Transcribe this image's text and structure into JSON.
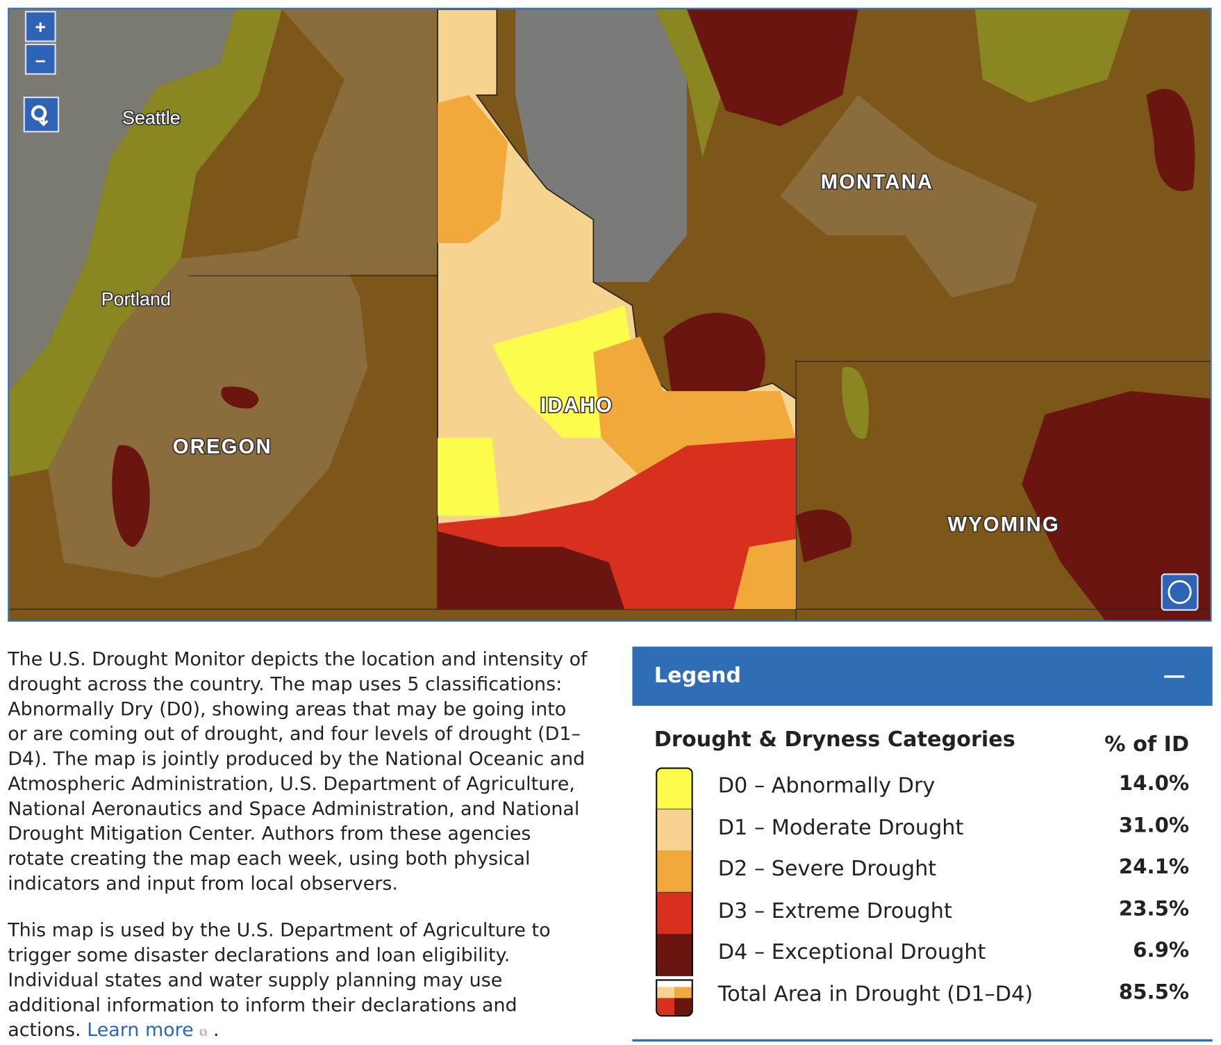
{
  "map": {
    "controls": {
      "zoom_in": "+",
      "zoom_out": "–"
    },
    "labels": {
      "seattle": "Seattle",
      "portland": "Portland",
      "montana": "MONTANA",
      "oregon": "OREGON",
      "idaho": "IDAHO",
      "wyoming": "WYOMING"
    }
  },
  "description": {
    "paragraphs": [
      "The U.S. Drought Monitor depicts the location and intensity of drought across the country. The map uses 5 classifications: Abnormally Dry (D0), showing areas that may be going into or are coming out of drought, and four levels of drought (D1–D4). The map is jointly produced by the National Oceanic and Atmospheric Administration,  U.S. Department of Agriculture, National Aeronautics and Space Administration, and National Drought Mitigation Center. Authors from these agencies rotate creating the map each week, using both physical indicators and  input from local observers.",
      "This map is used by the U.S. Department of Agriculture to trigger some disaster declarations and loan eligibility. Individual states and water supply planning may use additional information to inform their declarations and actions."
    ],
    "link": "Learn more",
    "end": "."
  },
  "legend": {
    "title": "Legend",
    "header": "Drought & Dryness Categories",
    "column": "% of ID",
    "rows": [
      {
        "label": "D0 – Abnormally Dry",
        "percent": "14.0%"
      },
      {
        "label": "D1 – Moderate Drought",
        "percent": "31.0%"
      },
      {
        "label": "D2 – Severe Drought",
        "percent": "24.1%"
      },
      {
        "label": "D3 – Extreme Drought",
        "percent": "23.5%"
      },
      {
        "label": "D4 – Exceptional Drought",
        "percent": "6.9%"
      },
      {
        "label": "Total Area in Drought (D1–D4)",
        "percent": "85.5%"
      }
    ]
  }
}
